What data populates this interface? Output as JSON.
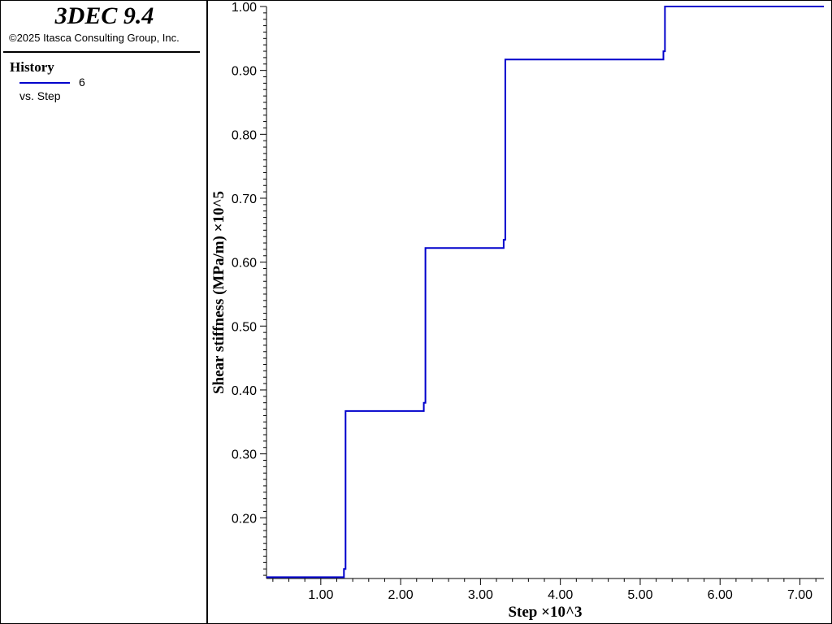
{
  "header": {
    "app_title": "3DEC 9.4",
    "copyright": "©2025 Itasca Consulting Group, Inc."
  },
  "legend": {
    "heading": "History",
    "series_label": "6",
    "vs_label": "vs. Step",
    "line_color": "#0000cc"
  },
  "chart_data": {
    "type": "line",
    "xlabel": "Step ×10^3",
    "ylabel": "Shear stiffness (MPa/m) ×10^5",
    "xlim": [
      0.32,
      7.3
    ],
    "ylim": [
      0.105,
      1.0
    ],
    "x_ticks": [
      1.0,
      2.0,
      3.0,
      4.0,
      5.0,
      6.0,
      7.0
    ],
    "x_tick_labels": [
      "1.00",
      "2.00",
      "3.00",
      "4.00",
      "5.00",
      "6.00",
      "7.00"
    ],
    "y_ticks": [
      0.2,
      0.3,
      0.4,
      0.5,
      0.6,
      0.7,
      0.8,
      0.9,
      1.0
    ],
    "y_tick_labels": [
      "0.20",
      "0.30",
      "0.40",
      "0.50",
      "0.60",
      "0.70",
      "0.80",
      "0.90",
      "1.00"
    ],
    "series": [
      {
        "name": "6",
        "color": "#0000cc",
        "x": [
          0.32,
          1.29,
          1.29,
          1.31,
          1.31,
          2.29,
          2.29,
          2.31,
          2.31,
          3.29,
          3.29,
          3.31,
          3.31,
          5.29,
          5.29,
          5.31,
          5.31,
          7.3
        ],
        "y": [
          0.107,
          0.107,
          0.12,
          0.12,
          0.367,
          0.367,
          0.38,
          0.38,
          0.622,
          0.622,
          0.635,
          0.635,
          0.917,
          0.917,
          0.93,
          0.93,
          1.0,
          1.0
        ]
      }
    ]
  }
}
